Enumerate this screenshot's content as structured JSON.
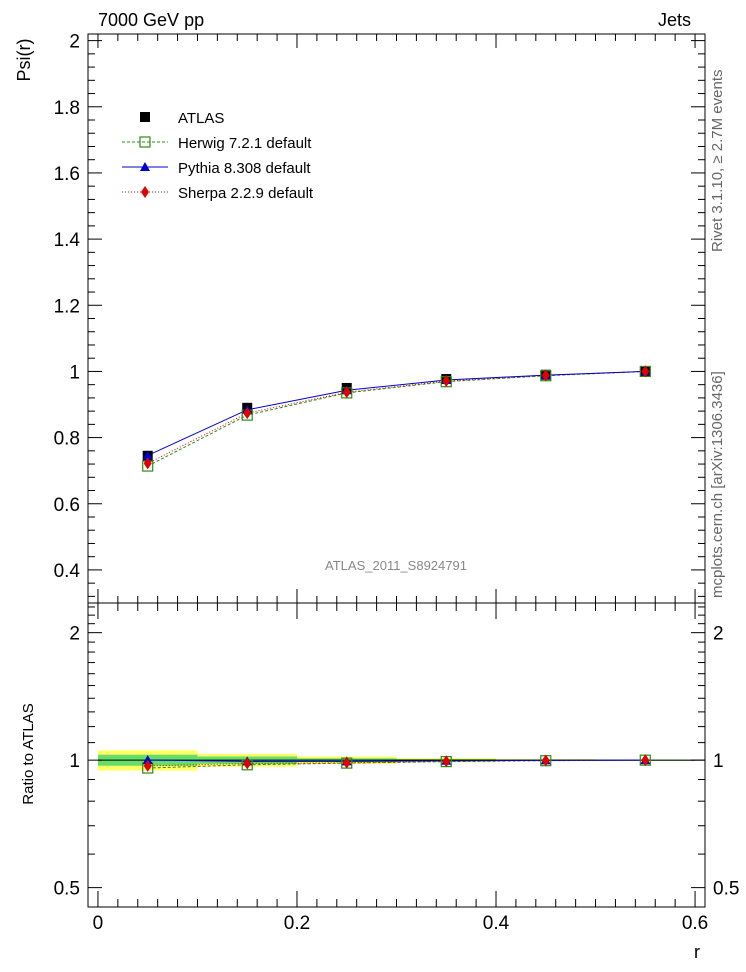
{
  "header": {
    "left": "7000 GeV pp",
    "right": "Jets"
  },
  "side_labels": {
    "top": "Rivet 3.1.10, ≥ 2.7M events",
    "bottom": "mcplots.cern.ch [arXiv:1306.3436]"
  },
  "watermark": "ATLAS_2011_S8924791",
  "colors": {
    "data": "#000000",
    "herwig": "#2e8b14",
    "pythia": "#0000cc",
    "sherpa": "#e00000",
    "band_inner": "#66dd66",
    "band_outer": "#ffff66"
  },
  "chart_data": [
    {
      "type": "line",
      "panel": "main",
      "ylabel": "Psi(r)",
      "xlim": [
        -0.01,
        0.61
      ],
      "ylim": [
        0.3,
        2.02
      ],
      "y_ticks": [
        0.4,
        0.6,
        0.8,
        1,
        1.2,
        1.4,
        1.6,
        1.8,
        2
      ],
      "x": [
        0.05,
        0.15,
        0.25,
        0.35,
        0.45,
        0.55
      ],
      "x_bin_width": 0.1,
      "series": [
        {
          "name": "ATLAS",
          "key": "atlas",
          "values": [
            0.745,
            0.89,
            0.95,
            0.977,
            0.99,
            1.0
          ]
        },
        {
          "name": "Herwig 7.2.1 default",
          "key": "herwig",
          "values": [
            0.714,
            0.868,
            0.935,
            0.969,
            0.987,
            1.0
          ]
        },
        {
          "name": "Pythia 8.308 default",
          "key": "pythia",
          "values": [
            0.746,
            0.884,
            0.943,
            0.974,
            0.989,
            1.0
          ]
        },
        {
          "name": "Sherpa 2.2.9 default",
          "key": "sherpa",
          "values": [
            0.722,
            0.874,
            0.937,
            0.971,
            0.988,
            1.0
          ]
        }
      ],
      "legend": "top-left"
    },
    {
      "type": "line",
      "panel": "ratio",
      "ylabel": "Ratio to ATLAS",
      "xlabel": "r",
      "xlim": [
        -0.01,
        0.61
      ],
      "ylim": [
        0.45,
        2.35
      ],
      "y_ticks": [
        0.5,
        1,
        2
      ],
      "x_ticks": [
        0,
        0.2,
        0.4,
        0.6
      ],
      "x_tick_labels": [
        "0",
        "0.2",
        "0.4",
        "0.6"
      ],
      "x": [
        0.05,
        0.15,
        0.25,
        0.35,
        0.45,
        0.55
      ],
      "series": [
        {
          "name": "Herwig 7.2.1 default",
          "key": "herwig",
          "values": [
            0.958,
            0.975,
            0.984,
            0.992,
            0.997,
            1.0
          ]
        },
        {
          "name": "Pythia 8.308 default",
          "key": "pythia",
          "values": [
            1.001,
            0.993,
            0.993,
            0.997,
            0.999,
            1.0
          ]
        },
        {
          "name": "Sherpa 2.2.9 default",
          "key": "sherpa",
          "values": [
            0.969,
            0.982,
            0.986,
            0.994,
            0.998,
            1.0
          ]
        }
      ],
      "uncertainty_band": {
        "outer": [
          0.055,
          0.035,
          0.02,
          0.012,
          0.006,
          0.002
        ],
        "inner": [
          0.03,
          0.02,
          0.01,
          0.006,
          0.003,
          0.001
        ]
      }
    }
  ]
}
